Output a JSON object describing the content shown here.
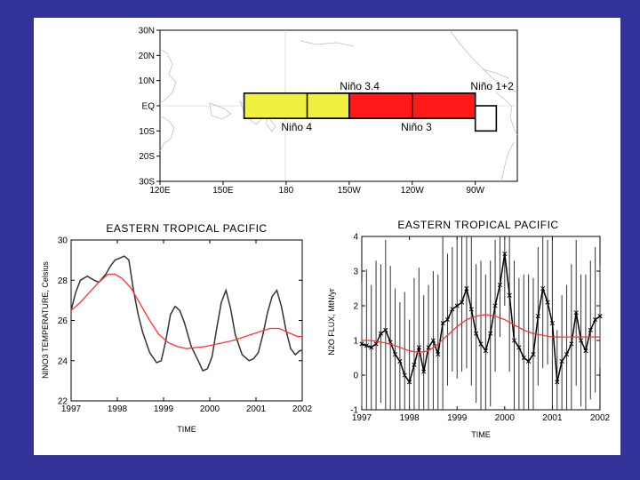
{
  "map": {
    "lat_labels": [
      "30N",
      "20N",
      "10N",
      "EQ",
      "10S",
      "20S",
      "30S"
    ],
    "lon_labels": [
      "120E",
      "150E",
      "180",
      "150W",
      "120W",
      "90W"
    ],
    "regions": [
      {
        "name": "Niño 4",
        "lon": [
          160,
          210
        ],
        "lat": [
          -5,
          5
        ],
        "fill": "#f0f040"
      },
      {
        "name": "Niño 3.4",
        "lon": [
          190,
          240
        ],
        "lat": [
          -5,
          5
        ],
        "fill": "none"
      },
      {
        "name": "Niño 3",
        "lon": [
          210,
          270
        ],
        "lat": [
          -5,
          5
        ],
        "fill": "#ff1a1a"
      },
      {
        "name": "Niño 1+2",
        "lon": [
          270,
          280
        ],
        "lat": [
          -10,
          0
        ],
        "fill": "none"
      }
    ]
  },
  "chart_data": [
    {
      "type": "line",
      "title": "EASTERN TROPICAL PACIFIC",
      "xlabel": "TIME",
      "ylabel": "NINO3 TEMPERATURE, Celsius",
      "xlim": [
        1997,
        2002
      ],
      "ylim": [
        22,
        30
      ],
      "xticks": [
        "1997",
        "1998",
        "1999",
        "2000",
        "2001",
        "2002"
      ],
      "yticks": [
        "22",
        "24",
        "26",
        "28",
        "30"
      ],
      "series": [
        {
          "color": "#333333",
          "x": [
            1997.0,
            1997.1,
            1997.2,
            1997.35,
            1997.5,
            1997.6,
            1997.75,
            1997.85,
            1997.95,
            1998.05,
            1998.15,
            1998.25,
            1998.35,
            1998.45,
            1998.55,
            1998.7,
            1998.85,
            1998.95,
            1999.05,
            1999.15,
            1999.25,
            1999.35,
            1999.45,
            1999.6,
            1999.75,
            1999.85,
            1999.95,
            2000.05,
            2000.15,
            2000.25,
            2000.35,
            2000.45,
            2000.55,
            2000.7,
            2000.85,
            2000.95,
            2001.05,
            2001.15,
            2001.25,
            2001.35,
            2001.45,
            2001.55,
            2001.65,
            2001.75,
            2001.85,
            2001.95,
            2002.0
          ],
          "y": [
            26.5,
            27.4,
            28.0,
            28.2,
            28.0,
            27.9,
            28.3,
            28.7,
            29.0,
            29.1,
            29.2,
            29.0,
            27.5,
            26.3,
            25.4,
            24.4,
            23.9,
            24.0,
            25.0,
            26.3,
            26.7,
            26.5,
            25.9,
            24.7,
            24.0,
            23.5,
            23.6,
            24.2,
            25.6,
            26.9,
            27.5,
            26.6,
            25.3,
            24.3,
            24.0,
            24.1,
            24.4,
            25.3,
            26.4,
            27.2,
            27.5,
            26.7,
            25.5,
            24.6,
            24.3,
            24.5,
            24.5
          ]
        },
        {
          "color": "#ff3333",
          "x": [
            1997.0,
            1997.2,
            1997.4,
            1997.6,
            1997.8,
            1997.95,
            1998.1,
            1998.3,
            1998.5,
            1998.7,
            1998.9,
            1999.1,
            1999.3,
            1999.5,
            1999.7,
            1999.9,
            2000.1,
            2000.3,
            2000.5,
            2000.7,
            2000.9,
            2001.1,
            2001.3,
            2001.5,
            2001.7,
            2001.9,
            2002.0
          ],
          "y": [
            26.5,
            26.9,
            27.4,
            27.9,
            28.3,
            28.3,
            28.1,
            27.6,
            26.8,
            26.0,
            25.3,
            24.9,
            24.7,
            24.6,
            24.65,
            24.7,
            24.8,
            24.9,
            25.0,
            25.15,
            25.3,
            25.45,
            25.6,
            25.6,
            25.4,
            25.2,
            25.2
          ]
        }
      ]
    },
    {
      "type": "line",
      "title": "EASTERN TROPICAL PACIFIC",
      "xlabel": "TIME",
      "ylabel": "N2O FLUX, MtN/yr",
      "xlim": [
        1997,
        2002
      ],
      "ylim": [
        -1,
        4
      ],
      "xticks": [
        "1997",
        "1998",
        "1999",
        "2000",
        "2001",
        "2002"
      ],
      "yticks": [
        "-1",
        "0",
        "1",
        "2",
        "3",
        "4"
      ],
      "series": [
        {
          "color": "#000000",
          "markers": true,
          "x": [
            1997.0,
            1997.1,
            1997.2,
            1997.3,
            1997.4,
            1997.5,
            1997.6,
            1997.7,
            1997.8,
            1997.9,
            1998.0,
            1998.1,
            1998.2,
            1998.3,
            1998.4,
            1998.5,
            1998.6,
            1998.7,
            1998.8,
            1998.9,
            1999.0,
            1999.1,
            1999.2,
            1999.3,
            1999.4,
            1999.5,
            1999.6,
            1999.7,
            1999.8,
            1999.9,
            2000.0,
            2000.1,
            2000.2,
            2000.3,
            2000.4,
            2000.5,
            2000.6,
            2000.7,
            2000.8,
            2000.9,
            2001.0,
            2001.1,
            2001.2,
            2001.3,
            2001.4,
            2001.5,
            2001.6,
            2001.7,
            2001.8,
            2001.9,
            2002.0
          ],
          "y": [
            0.9,
            0.85,
            0.8,
            0.9,
            1.2,
            1.3,
            0.95,
            0.6,
            0.4,
            0.0,
            -0.2,
            0.3,
            0.8,
            0.1,
            0.8,
            1.0,
            0.6,
            1.5,
            1.6,
            1.9,
            2.0,
            2.1,
            2.5,
            1.9,
            1.2,
            0.9,
            0.7,
            1.2,
            2.0,
            2.6,
            3.5,
            2.3,
            1.0,
            0.8,
            0.5,
            0.4,
            0.6,
            1.7,
            2.5,
            2.1,
            1.5,
            -0.2,
            0.4,
            0.6,
            0.9,
            1.8,
            1.0,
            0.7,
            1.3,
            1.6,
            1.7
          ],
          "err": [
            1.8,
            2.2,
            1.8,
            2.4,
            2.0,
            2.6,
            2.2,
            1.9,
            1.7,
            2.4,
            1.8,
            2.5,
            2.3,
            2.2,
            1.8,
            2.0,
            2.3,
            2.5,
            1.9,
            1.8,
            2.1,
            2.0,
            2.3,
            2.2,
            2.0,
            2.4,
            2.2,
            2.1,
            1.9,
            1.5,
            1.5,
            2.2,
            2.3,
            2.0,
            2.4,
            2.5,
            2.2,
            2.0,
            2.3,
            1.8,
            2.4,
            1.5,
            1.9,
            2.0,
            2.3,
            2.1,
            1.9,
            2.2,
            2.0,
            2.1,
            1.5
          ]
        },
        {
          "color": "#ff3333",
          "x": [
            1997.0,
            1997.2,
            1997.4,
            1997.6,
            1997.8,
            1998.0,
            1998.2,
            1998.4,
            1998.6,
            1998.8,
            1999.0,
            1999.2,
            1999.4,
            1999.6,
            1999.8,
            2000.0,
            2000.2,
            2000.4,
            2000.6,
            2000.8,
            2001.0,
            2001.2,
            2001.4,
            2001.6,
            2001.8,
            2002.0
          ],
          "y": [
            1.0,
            1.0,
            0.95,
            0.9,
            0.8,
            0.7,
            0.65,
            0.7,
            0.9,
            1.15,
            1.4,
            1.6,
            1.7,
            1.75,
            1.7,
            1.6,
            1.45,
            1.3,
            1.2,
            1.15,
            1.1,
            1.1,
            1.1,
            1.1,
            1.1,
            1.1
          ]
        }
      ]
    }
  ]
}
